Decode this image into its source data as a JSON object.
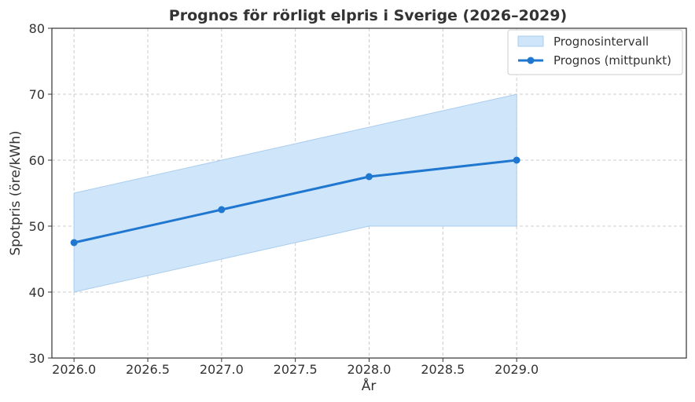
{
  "chart_data": {
    "type": "line",
    "title": "Prognos för rörligt elpris i Sverige (2026–2029)",
    "xlabel": "År",
    "ylabel": "Spotpris (öre/kWh)",
    "xlim": [
      2025.85,
      2030.15
    ],
    "ylim": [
      30,
      80
    ],
    "xticks": [
      2026.0,
      2026.5,
      2027.0,
      2027.5,
      2028.0,
      2028.5,
      2029.0
    ],
    "xtick_labels": [
      "2026.0",
      "2026.5",
      "2027.0",
      "2027.5",
      "2028.0",
      "2028.5",
      "2029.0"
    ],
    "yticks": [
      30,
      40,
      50,
      60,
      70,
      80
    ],
    "ytick_labels": [
      "30",
      "40",
      "50",
      "60",
      "70",
      "80"
    ],
    "grid": true,
    "legend_position": "top-right",
    "x": [
      2026,
      2027,
      2028,
      2029
    ],
    "band": {
      "name": "Prognosintervall",
      "lower": [
        40,
        45,
        50,
        50
      ],
      "upper": [
        55,
        60,
        65,
        70
      ],
      "color": "#cfe5f9",
      "edge_color": "#a9cdef"
    },
    "series": [
      {
        "name": "Prognos (mittpunkt)",
        "values": [
          47.5,
          52.5,
          57.5,
          60.0
        ],
        "color": "#1f77d0"
      }
    ]
  }
}
